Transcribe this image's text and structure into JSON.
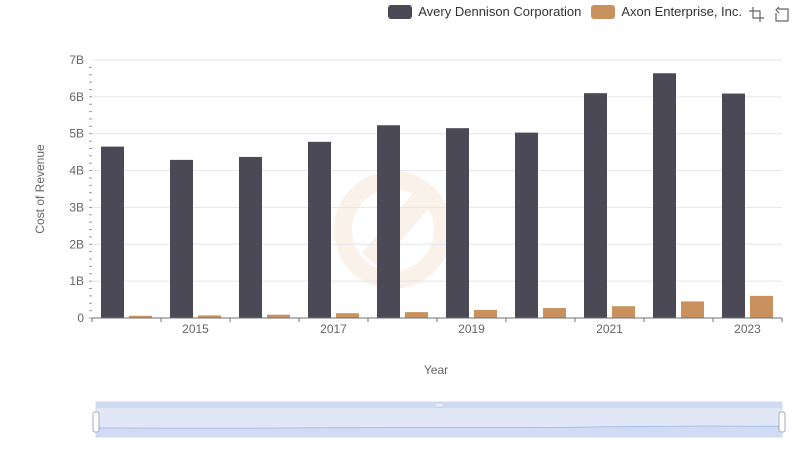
{
  "legend": {
    "items": [
      {
        "label": "Avery Dennison Corporation",
        "color": "#4a4955"
      },
      {
        "label": "Axon Enterprise, Inc.",
        "color": "#c8915d"
      }
    ]
  },
  "toolbox": {
    "icons": [
      "zoom-icon",
      "restore-icon"
    ]
  },
  "chart_data": {
    "type": "bar",
    "categories": [
      "2014",
      "2015",
      "2016",
      "2017",
      "2018",
      "2019",
      "2020",
      "2021",
      "2022",
      "2023"
    ],
    "x_tick_labels": [
      "2015",
      "2017",
      "2019",
      "2021",
      "2023"
    ],
    "series": [
      {
        "name": "Avery Dennison Corporation",
        "color": "#4a4955",
        "values": [
          4.65,
          4.29,
          4.37,
          4.78,
          5.23,
          5.15,
          5.03,
          6.1,
          6.64,
          6.09
        ]
      },
      {
        "name": "Axon Enterprise, Inc.",
        "color": "#c8915d",
        "values": [
          0.06,
          0.07,
          0.09,
          0.13,
          0.16,
          0.22,
          0.27,
          0.32,
          0.45,
          0.6
        ]
      }
    ],
    "xlabel": "Year",
    "ylabel": "Cost of Revenue",
    "ylim": [
      0,
      7
    ],
    "y_ticks": [
      0,
      1,
      2,
      3,
      4,
      5,
      6,
      7
    ],
    "y_tick_labels": [
      "0",
      "1B",
      "2B",
      "3B",
      "4B",
      "5B",
      "6B",
      "7B"
    ],
    "grid": true,
    "legend_position": "top-right",
    "datazoom_slider": true
  }
}
